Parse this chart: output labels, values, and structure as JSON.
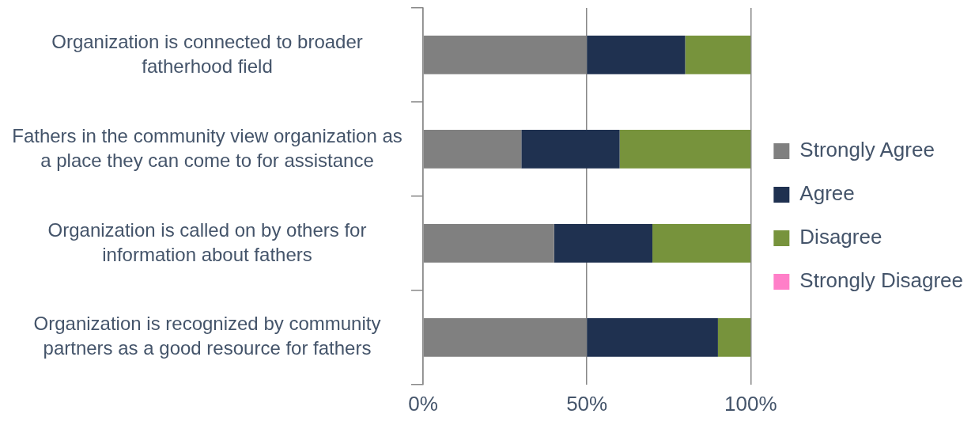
{
  "chart_data": {
    "type": "bar",
    "orientation": "horizontal",
    "stacked": true,
    "categories": [
      "Organization is connected to broader fatherhood field",
      "Fathers in the community view organization as a place they can come to for assistance",
      "Organization is called on by others for information about fathers",
      "Organization is recognized by community partners as a good resource for fathers"
    ],
    "series": [
      {
        "name": "Strongly Agree",
        "color": "#808080",
        "values": [
          50,
          30,
          40,
          50
        ]
      },
      {
        "name": "Agree",
        "color": "#1f3150",
        "values": [
          30,
          30,
          30,
          40
        ]
      },
      {
        "name": "Disagree",
        "color": "#77933c",
        "values": [
          20,
          40,
          30,
          10
        ]
      },
      {
        "name": "Strongly Disagree",
        "color": "#ff7fc8",
        "values": [
          0,
          0,
          0,
          0
        ]
      }
    ],
    "xlim": [
      0,
      100
    ],
    "xticks": [
      {
        "value": 0,
        "label": "0%"
      },
      {
        "value": 50,
        "label": "50%"
      },
      {
        "value": 100,
        "label": "100%"
      }
    ],
    "grid": "x",
    "legend": "right"
  }
}
